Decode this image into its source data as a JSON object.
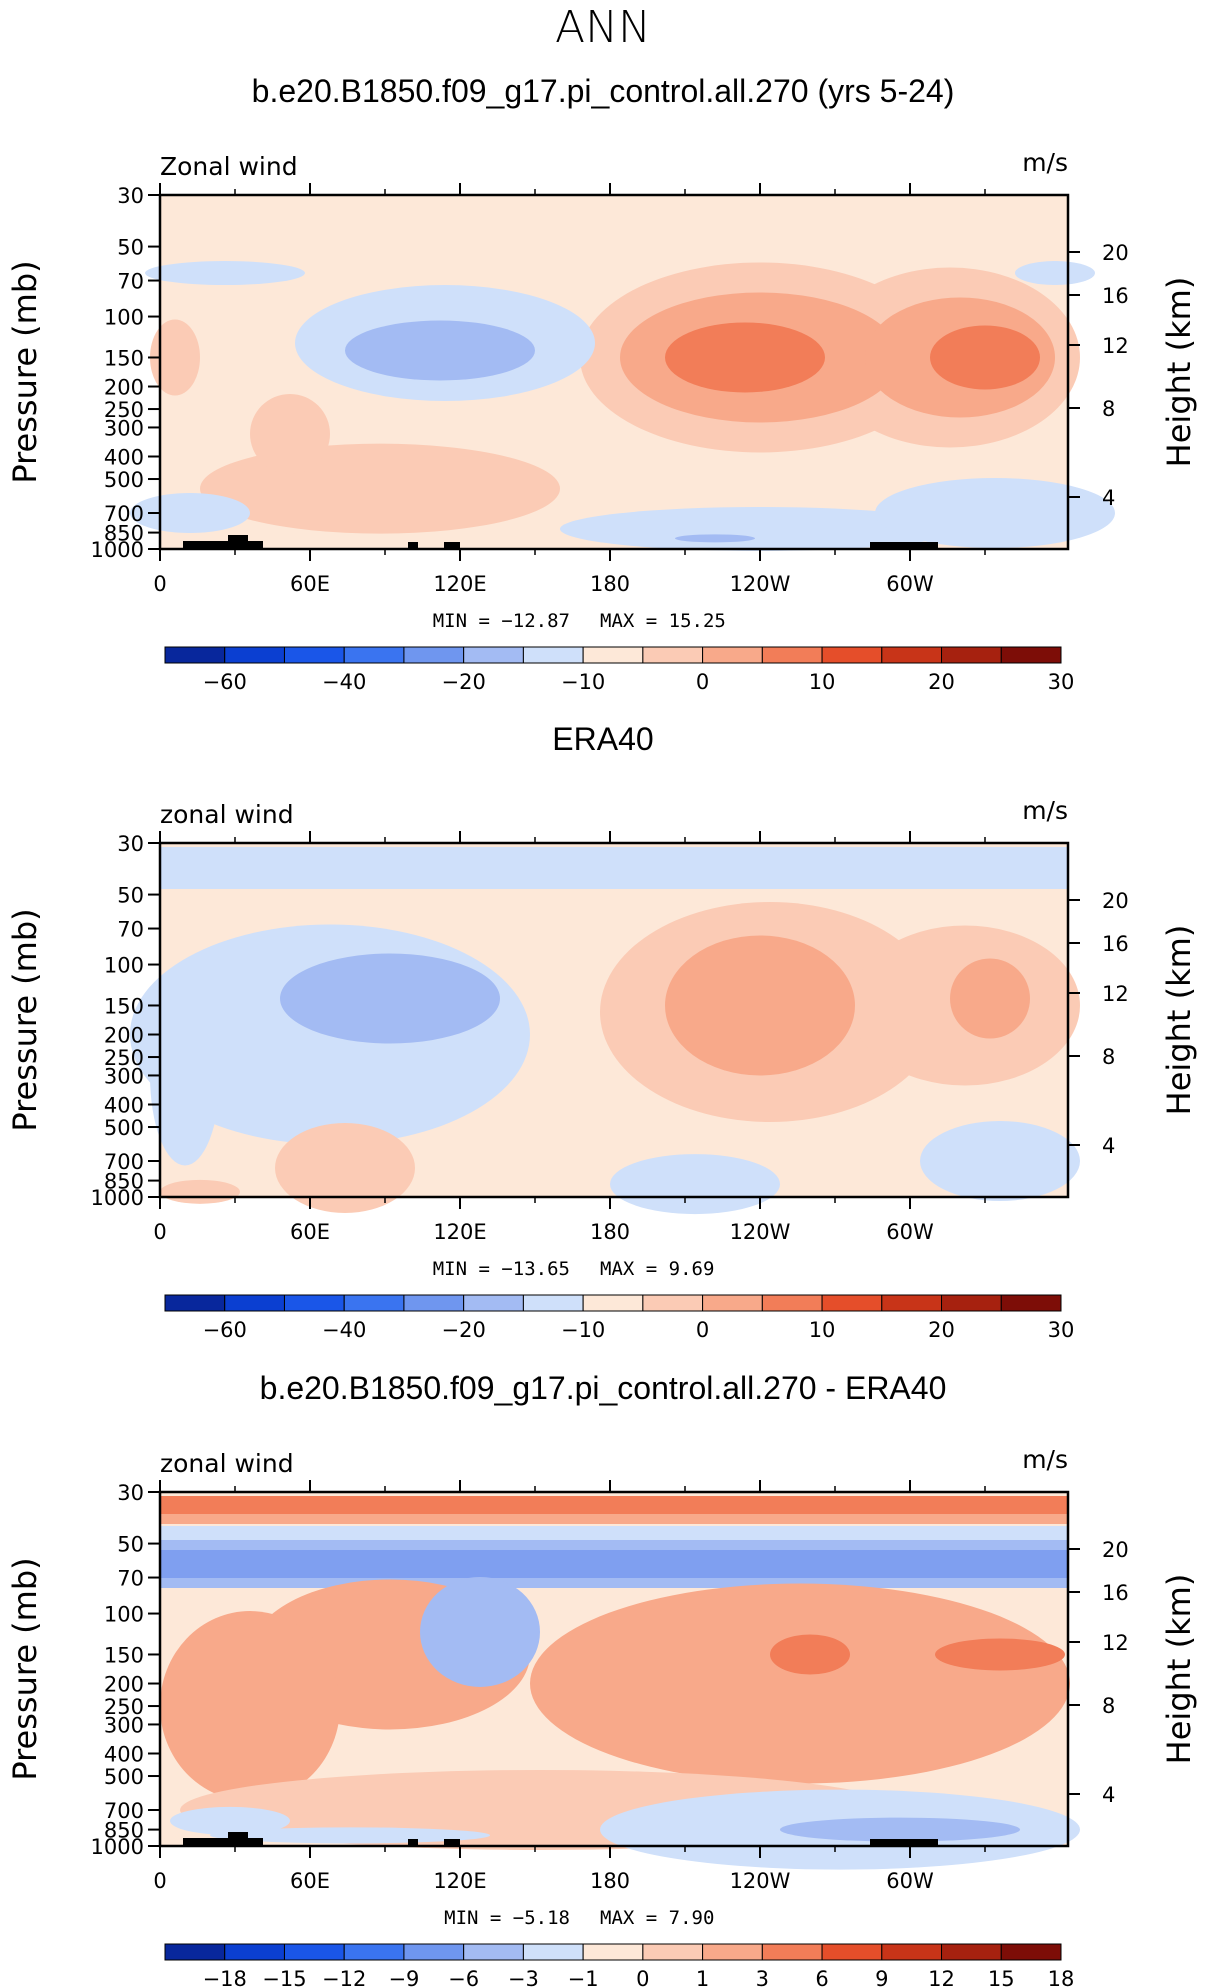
{
  "suptitle": "ANN",
  "chart_data": [
    {
      "type": "heatmap",
      "title": "b.e20.B1850.f09_g17.pi_control.all.270 (yrs 5-24)",
      "left_label": "Zonal wind",
      "units": "m/s",
      "ylabel": "Pressure (mb)",
      "ylabel_right": "Height (km)",
      "x_ticks": [
        "0",
        "60E",
        "120E",
        "180",
        "120W",
        "60W"
      ],
      "y_ticks": [
        "30",
        "50",
        "70",
        "100",
        "150",
        "200",
        "250",
        "300",
        "400",
        "500",
        "700",
        "850",
        "1000"
      ],
      "y_ticks_right": [
        "20",
        "16",
        "12",
        "8",
        "4"
      ],
      "min_text": "MIN = −12.87",
      "max_text": "MAX = 15.25",
      "min": -12.87,
      "max": 15.25,
      "colorbar_labels": [
        "−60",
        "−40",
        "−20",
        "−10",
        "0",
        "10",
        "20",
        "30"
      ],
      "colorbar_colors": [
        "#08279c",
        "#0b3fd1",
        "#1a56e8",
        "#3a74f0",
        "#6f96ef",
        "#a3bbf3",
        "#cfe0fa",
        "#fde8d8",
        "#fbcbb5",
        "#f8a98a",
        "#f27d58",
        "#e54e2a",
        "#c83418",
        "#a6210f",
        "#7d0d07"
      ]
    },
    {
      "type": "heatmap",
      "title": "ERA40",
      "left_label": "zonal wind",
      "units": "m/s",
      "ylabel": "Pressure (mb)",
      "ylabel_right": "Height (km)",
      "x_ticks": [
        "0",
        "60E",
        "120E",
        "180",
        "120W",
        "60W"
      ],
      "y_ticks": [
        "30",
        "50",
        "70",
        "100",
        "150",
        "200",
        "250",
        "300",
        "400",
        "500",
        "700",
        "850",
        "1000"
      ],
      "y_ticks_right": [
        "20",
        "16",
        "12",
        "8",
        "4"
      ],
      "min_text": "MIN = −13.65",
      "max_text": "MAX = 9.69",
      "min": -13.65,
      "max": 9.69,
      "colorbar_labels": [
        "−60",
        "−40",
        "−20",
        "−10",
        "0",
        "10",
        "20",
        "30"
      ],
      "colorbar_colors": [
        "#08279c",
        "#0b3fd1",
        "#1a56e8",
        "#3a74f0",
        "#6f96ef",
        "#a3bbf3",
        "#cfe0fa",
        "#fde8d8",
        "#fbcbb5",
        "#f8a98a",
        "#f27d58",
        "#e54e2a",
        "#c83418",
        "#a6210f",
        "#7d0d07"
      ]
    },
    {
      "type": "heatmap",
      "title": "b.e20.B1850.f09_g17.pi_control.all.270 - ERA40",
      "left_label": "zonal wind",
      "units": "m/s",
      "ylabel": "Pressure (mb)",
      "ylabel_right": "Height (km)",
      "x_ticks": [
        "0",
        "60E",
        "120E",
        "180",
        "120W",
        "60W"
      ],
      "y_ticks": [
        "30",
        "50",
        "70",
        "100",
        "150",
        "200",
        "250",
        "300",
        "400",
        "500",
        "700",
        "850",
        "1000"
      ],
      "y_ticks_right": [
        "20",
        "16",
        "12",
        "8",
        "4"
      ],
      "min_text": "MIN = −5.18",
      "max_text": "MAX = 7.90",
      "min": -5.18,
      "max": 7.9,
      "colorbar_labels": [
        "−18",
        "−15",
        "−12",
        "−9",
        "−6",
        "−3",
        "−1",
        "0",
        "1",
        "3",
        "6",
        "9",
        "12",
        "15",
        "18"
      ],
      "colorbar_colors": [
        "#08279c",
        "#0b3fd1",
        "#1a56e8",
        "#3a74f0",
        "#6f96ef",
        "#a3bbf3",
        "#cfe0fa",
        "#fde8d8",
        "#fbcbb5",
        "#f8a98a",
        "#f27d58",
        "#e54e2a",
        "#c83418",
        "#a6210f",
        "#7d0d07"
      ]
    }
  ]
}
